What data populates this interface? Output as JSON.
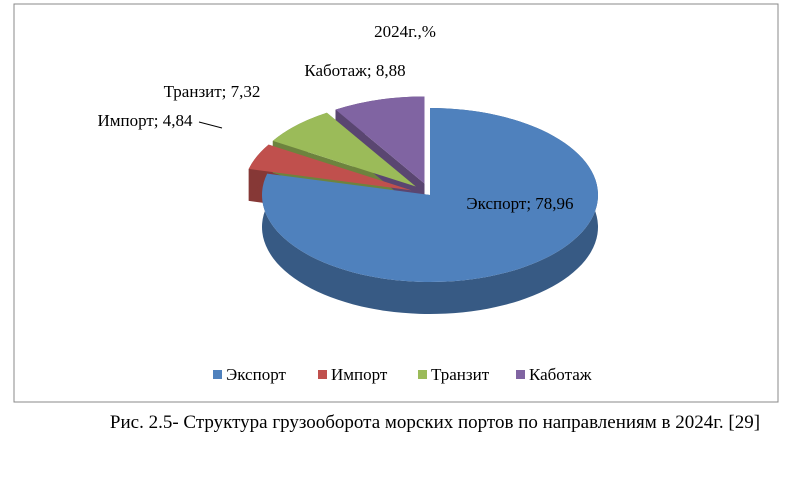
{
  "chart_data": {
    "type": "pie",
    "title": "2024г.,%",
    "categories": [
      "Экспорт",
      "Импорт",
      "Транзит",
      "Каботаж"
    ],
    "values": [
      78.96,
      4.84,
      7.32,
      8.88
    ],
    "value_labels": [
      "Экспорт; 78,96",
      "Импорт; 4,84",
      "Транзит; 7,32",
      "Каботаж; 8,88"
    ],
    "colors": [
      "#4f81bd",
      "#c0504d",
      "#9bbb59",
      "#8064a2"
    ],
    "legend": "bottom"
  },
  "caption": "Рис. 2.5- Структура грузооборота морских портов по направлениям в 2024г. [29]"
}
